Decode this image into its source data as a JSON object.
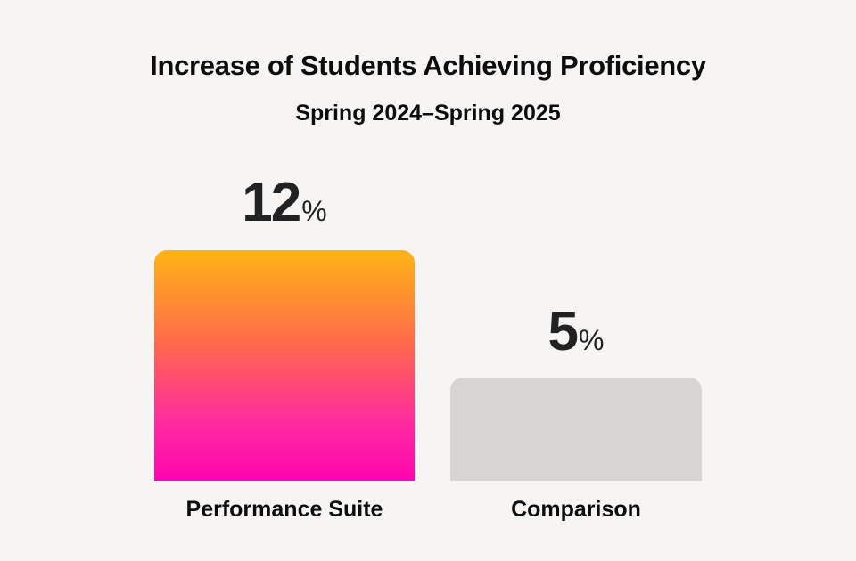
{
  "chart_data": {
    "type": "bar",
    "title": "Increase of Students Achieving Proficiency",
    "subtitle": "Spring 2024–Spring 2025",
    "categories": [
      "Performance Suite",
      "Comparison"
    ],
    "values": [
      12,
      5
    ],
    "value_labels": [
      "12",
      "5"
    ],
    "unit": "%",
    "xlabel": "",
    "ylabel": "",
    "grid": false,
    "legend": "none",
    "colors": [
      "gradient #ffb516→#ff05b0",
      "#d6d5d3"
    ]
  },
  "header": {
    "title": "Increase of Students Achieving Proficiency",
    "subtitle": "Spring 2024–Spring 2025"
  },
  "bars": [
    {
      "label": "Performance Suite",
      "value": "12",
      "unit": "%"
    },
    {
      "label": "Comparison",
      "value": "5",
      "unit": "%"
    }
  ],
  "colors": {
    "background": "#f6f5f3",
    "accent_top": "#ffb516",
    "accent_bottom": "#ff05b0",
    "comparison": "#d6d5d3"
  }
}
